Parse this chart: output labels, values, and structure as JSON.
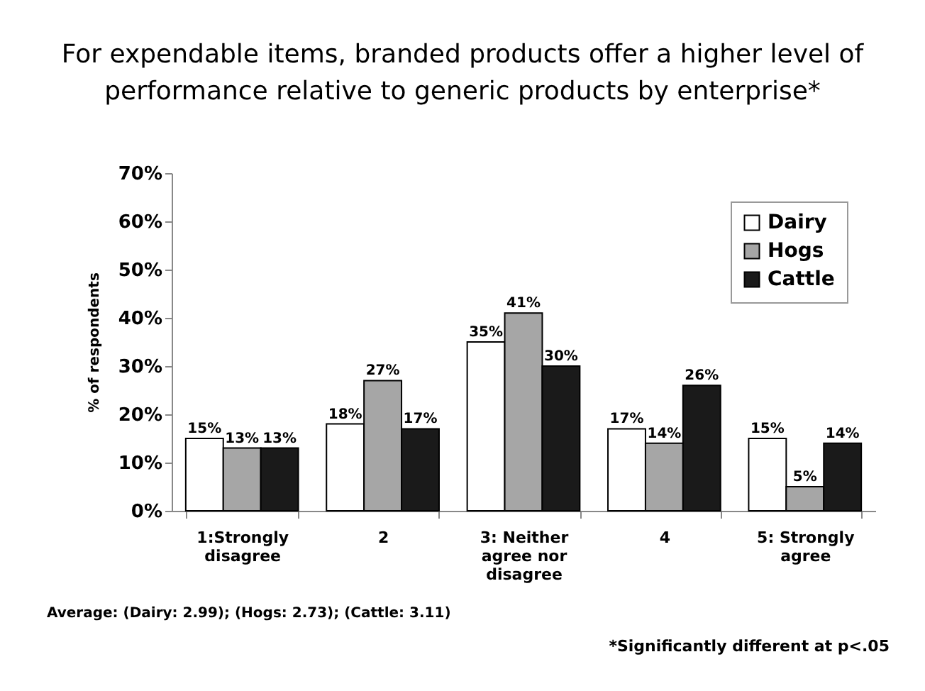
{
  "chart_data": {
    "type": "bar",
    "title": "For expendable items, branded products offer a higher level of performance relative to generic products by enterprise*",
    "ylabel": "% of respondents",
    "categories": [
      "1:Strongly disagree",
      "2",
      "3: Neither agree nor disagree",
      "4",
      "5: Strongly agree"
    ],
    "series": [
      {
        "name": "Dairy",
        "color": "#ffffff",
        "values": [
          15,
          18,
          35,
          17,
          15
        ],
        "value_labels": [
          "15%",
          "18%",
          "35%",
          "17%",
          "15%"
        ]
      },
      {
        "name": "Hogs",
        "color": "#a6a6a6",
        "values": [
          13,
          27,
          41,
          14,
          5
        ],
        "value_labels": [
          "13%",
          "27%",
          "41%",
          "14%",
          "5%"
        ]
      },
      {
        "name": "Cattle",
        "color": "#1a1a1a",
        "values": [
          13,
          17,
          30,
          26,
          14
        ],
        "value_labels": [
          "13%",
          "17%",
          "30%",
          "26%",
          "14%"
        ]
      }
    ],
    "ylim": [
      0,
      70
    ],
    "yticks": [
      {
        "value": 0,
        "label": "0%"
      },
      {
        "value": 10,
        "label": "10%"
      },
      {
        "value": 20,
        "label": "20%"
      },
      {
        "value": 30,
        "label": "30%"
      },
      {
        "value": 40,
        "label": "40%"
      },
      {
        "value": 50,
        "label": "50%"
      },
      {
        "value": 60,
        "label": "60%"
      },
      {
        "value": 70,
        "label": "70%"
      }
    ],
    "legend": "top right",
    "annotations": [
      "Average: (Dairy: 2.99); (Hogs: 2.73); (Cattle: 3.11)",
      "*Significantly different at p<.05"
    ]
  }
}
